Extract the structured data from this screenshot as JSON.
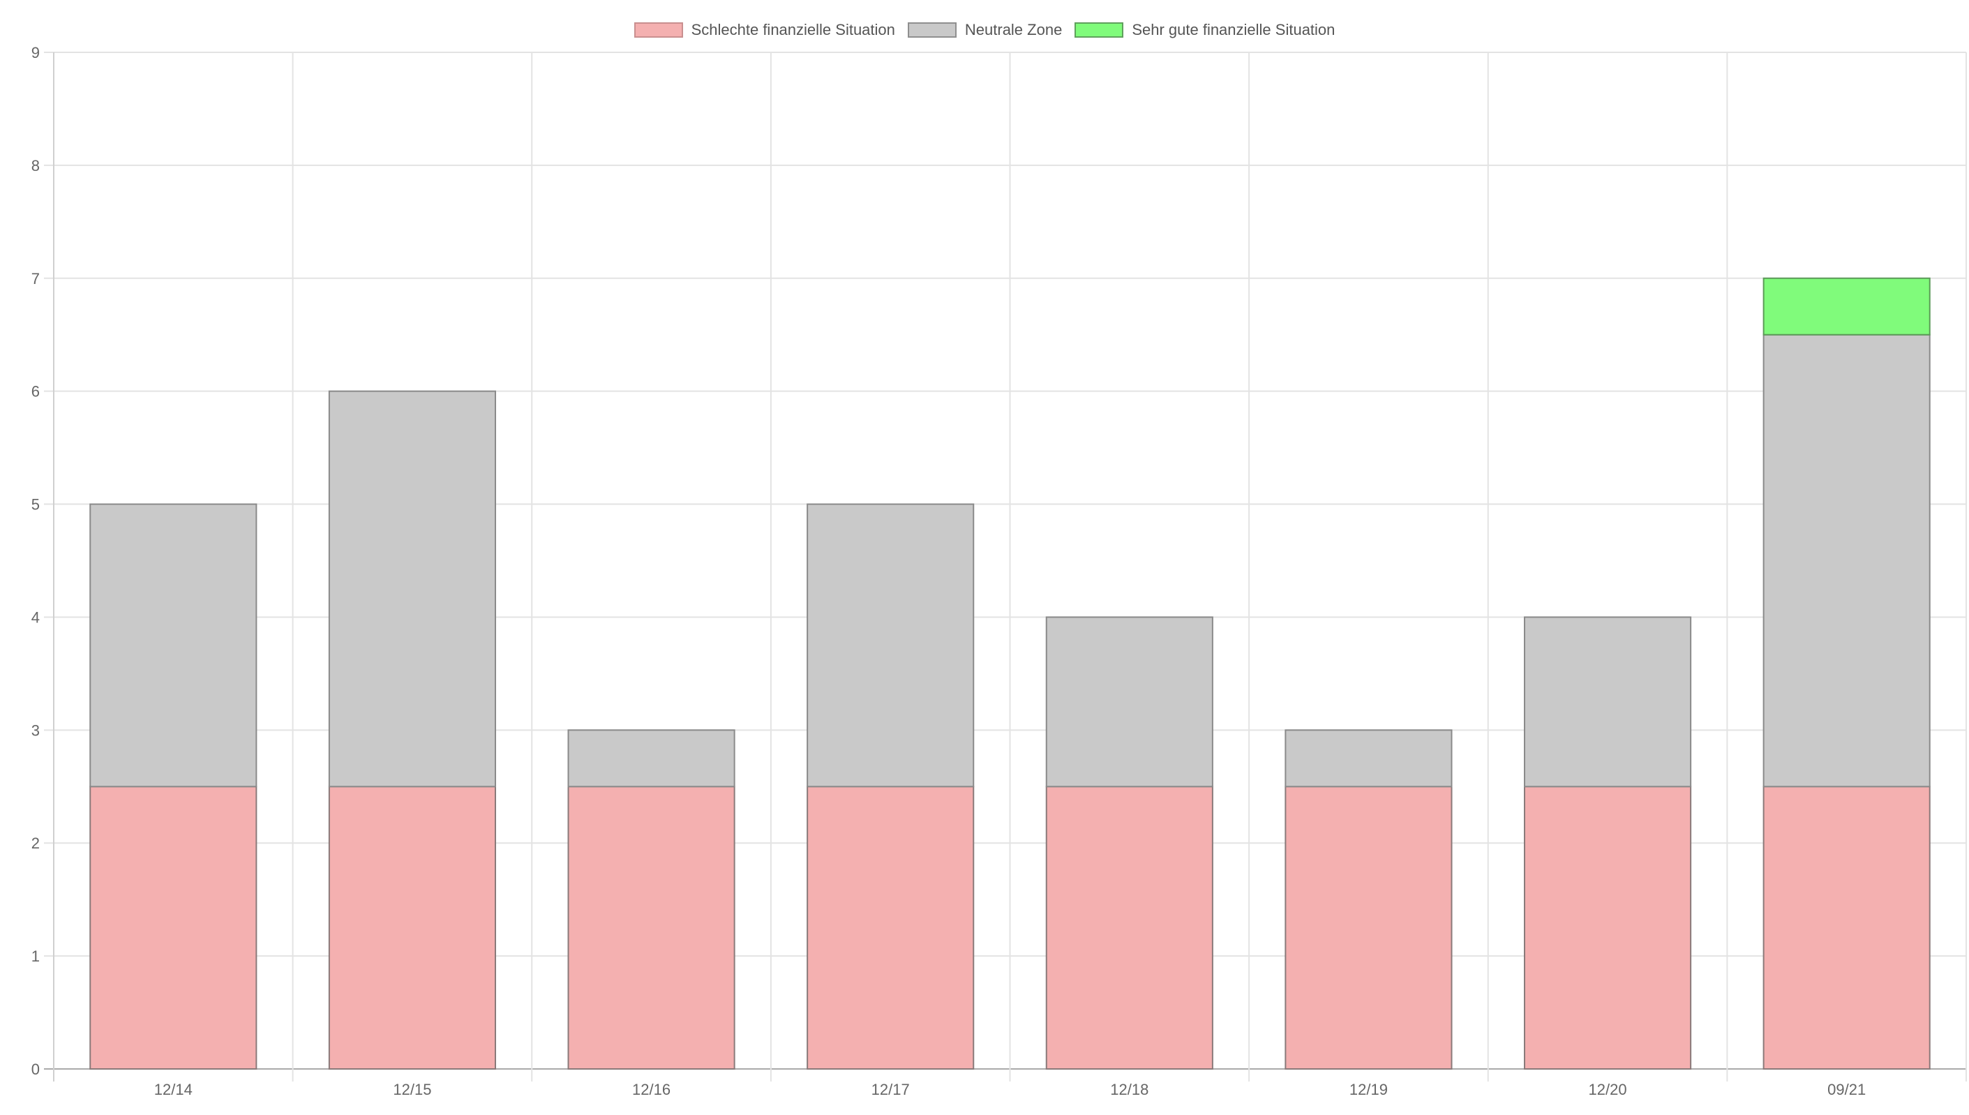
{
  "chart_data": {
    "type": "bar",
    "stacked": true,
    "categories": [
      "12/14",
      "12/15",
      "12/16",
      "12/17",
      "12/18",
      "12/19",
      "12/20",
      "09/21"
    ],
    "series": [
      {
        "name": "Schlechte finanzielle Situation",
        "color": "#f4b0b0",
        "values": [
          2.5,
          2.5,
          2.5,
          2.5,
          2.5,
          2.5,
          2.5,
          2.5
        ]
      },
      {
        "name": "Neutrale Zone",
        "color": "#c9c9c9",
        "values": [
          2.5,
          3.5,
          0.5,
          2.5,
          1.5,
          0.5,
          1.5,
          4
        ]
      },
      {
        "name": "Sehr gute finanzielle Situation",
        "color": "#80fb7b",
        "values": [
          0,
          0,
          0,
          0,
          0,
          0,
          0,
          0.5
        ]
      }
    ],
    "ylim": [
      0,
      9
    ],
    "yticks": [
      "0",
      "1",
      "2",
      "3",
      "4",
      "5",
      "6",
      "7",
      "8",
      "9"
    ],
    "title": "",
    "xlabel": "",
    "ylabel": "",
    "grid": true,
    "legend_position": "top-center"
  }
}
